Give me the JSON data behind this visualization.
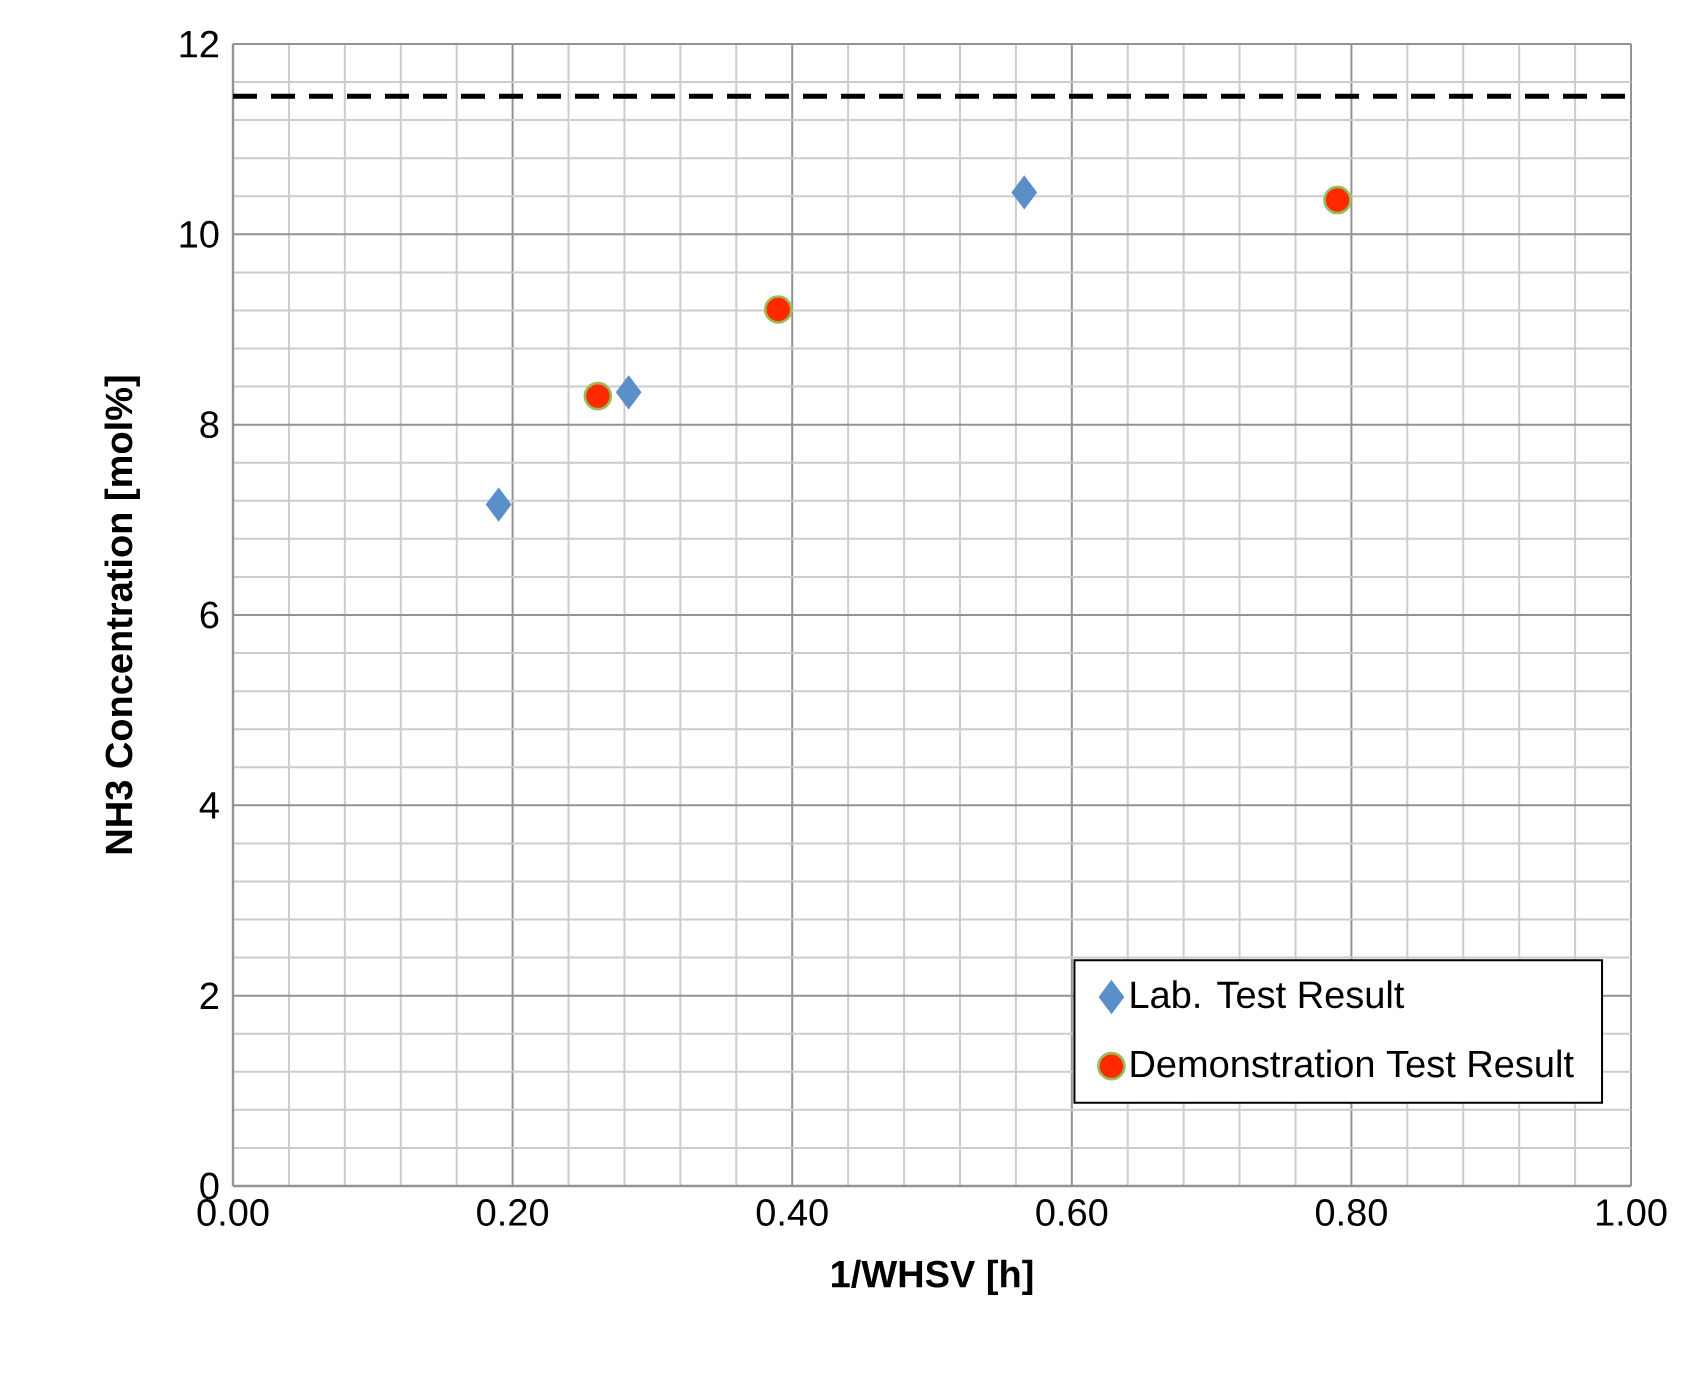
{
  "chart_data": {
    "type": "scatter",
    "xlabel": "1/WHSV [h]",
    "ylabel": "NH3 Concentration [mol%]",
    "xlim": [
      0,
      1
    ],
    "ylim": [
      0,
      12
    ],
    "xticks": [
      {
        "value": 0,
        "label": "0.00"
      },
      {
        "value": 0.2,
        "label": "0.20"
      },
      {
        "value": 0.4,
        "label": "0.40"
      },
      {
        "value": 0.6,
        "label": "0.60"
      },
      {
        "value": 0.8,
        "label": "0.80"
      },
      {
        "value": 1,
        "label": "1.00"
      }
    ],
    "yticks": [
      0,
      2,
      4,
      6,
      8,
      10,
      12
    ],
    "grid": true,
    "legend": "bottom right",
    "series": [
      {
        "name": "Lab. Test Result",
        "color": "#5b8fc9",
        "marker": "diamond",
        "x": [
          0.19,
          0.283,
          0.566
        ],
        "values": [
          7.16,
          8.34,
          10.44
        ]
      },
      {
        "name": "Demonstration Test Result",
        "color": "#ff2a00",
        "marker": "circle",
        "x": [
          0.261,
          0.39,
          0.79
        ],
        "values": [
          8.3,
          9.21,
          10.36
        ]
      }
    ],
    "ref_lines": [
      {
        "axis": "y",
        "value": 11.45,
        "color": "#000000",
        "line_style": "dashed"
      }
    ]
  }
}
